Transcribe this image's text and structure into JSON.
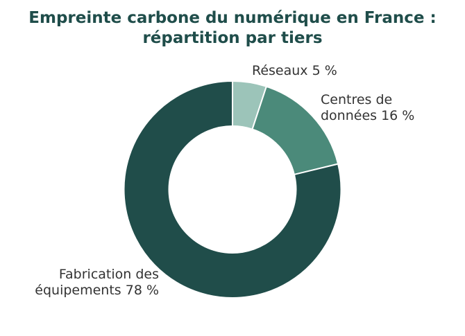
{
  "chart_data": {
    "type": "pie",
    "title_lines": [
      "Empreinte carbone du numérique en France :",
      "répartition par tiers"
    ],
    "categories": [
      "Réseaux",
      "Centres de données",
      "Fabrication des équipements"
    ],
    "values": [
      5,
      16,
      78
    ],
    "unit": "%",
    "labels": [
      [
        "Réseaux 5 %"
      ],
      [
        "Centres de",
        "données 16 %"
      ],
      [
        "Fabrication des",
        "équipements 78 %"
      ]
    ],
    "colors": [
      "#9cc4b9",
      "#4b8a7a",
      "#204d4a"
    ],
    "title_color": "#1f4d4a",
    "hole": "donut",
    "start": "12 o'clock",
    "direction": "clockwise",
    "legend": "none"
  }
}
